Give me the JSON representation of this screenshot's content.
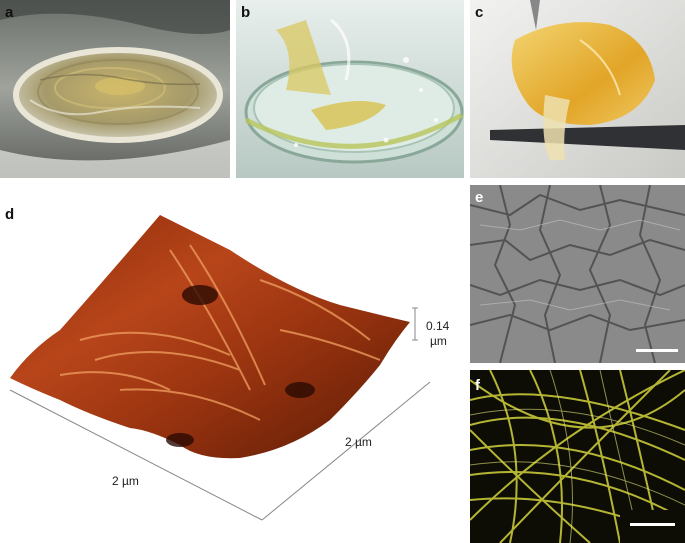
{
  "panels": {
    "a": {
      "label": "a"
    },
    "b": {
      "label": "b"
    },
    "c": {
      "label": "c"
    },
    "d": {
      "label": "d",
      "z_scale_value": "0.14",
      "z_scale_unit": "µm",
      "x_scale": "2 µm",
      "y_scale": "2 µm"
    },
    "e": {
      "label": "e"
    },
    "f": {
      "label": "f"
    }
  },
  "colors": {
    "afm_dark": "#5a1a05",
    "afm_mid": "#b8451a",
    "afm_light": "#f0a060",
    "fiber_yellow": "#c8c83a"
  }
}
